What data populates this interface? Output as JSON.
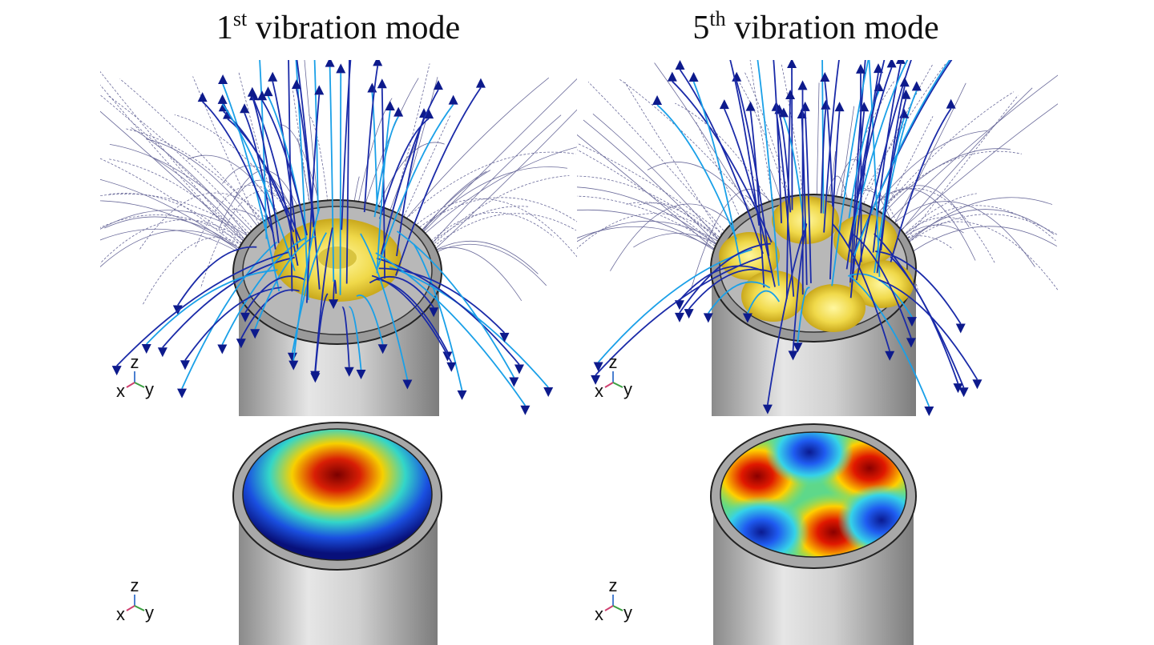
{
  "panels": [
    {
      "title": {
        "number": "1",
        "suffix": "st",
        "text": " vibration mode"
      },
      "triads": [
        {
          "z": "z",
          "x": "x",
          "y": "y"
        },
        {
          "z": "z",
          "x": "x",
          "y": "y"
        }
      ]
    },
    {
      "title": {
        "number": "5",
        "suffix": "th",
        "text": " vibration mode"
      },
      "triads": [
        {
          "z": "z",
          "x": "x",
          "y": "y"
        },
        {
          "z": "z",
          "x": "x",
          "y": "y"
        }
      ]
    }
  ]
}
